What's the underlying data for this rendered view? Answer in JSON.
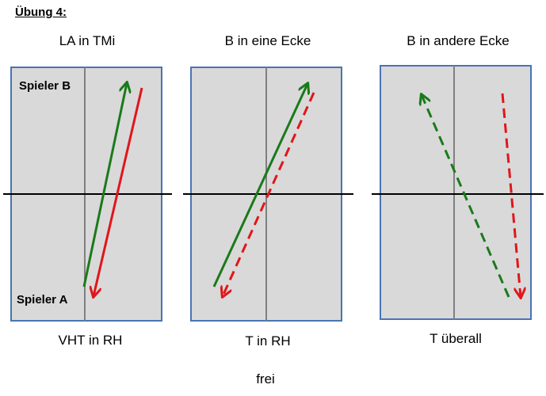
{
  "title": "Übung 4:",
  "exercises": [
    {
      "heading": "LA in TMi",
      "caption": "VHT in RH",
      "player_b": "Spieler B",
      "player_a": "Spieler A",
      "arrows": [
        {
          "color": "#1a7a1a",
          "style": "solid",
          "direction": "up"
        },
        {
          "color": "#e0161b",
          "style": "solid",
          "direction": "down"
        }
      ]
    },
    {
      "heading": "B in eine Ecke",
      "caption": "T in RH",
      "arrows": [
        {
          "color": "#1a7a1a",
          "style": "solid",
          "direction": "up"
        },
        {
          "color": "#e0161b",
          "style": "dashed",
          "direction": "down"
        }
      ]
    },
    {
      "heading": "B in andere Ecke",
      "caption": "T überall",
      "arrows": [
        {
          "color": "#1a7a1a",
          "style": "dashed",
          "direction": "up"
        },
        {
          "color": "#e0161b",
          "style": "dashed",
          "direction": "down"
        }
      ]
    }
  ],
  "footer": "frei",
  "colors": {
    "table_fill": "#d9d9d9",
    "table_border": "#4a74b3",
    "center_line": "#808080",
    "net": "#000000",
    "green": "#1a7a1a",
    "red": "#e0161b"
  }
}
